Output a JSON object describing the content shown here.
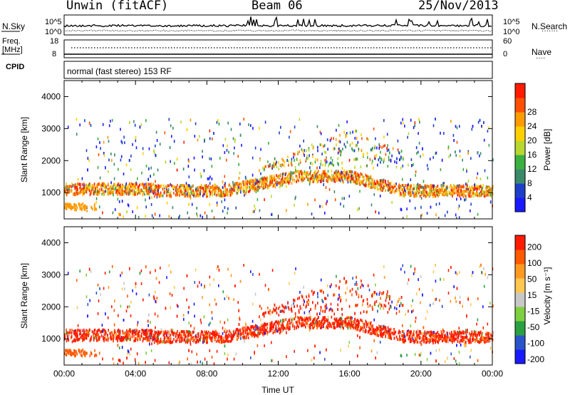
{
  "header": {
    "station": "Unwin (fitACF)",
    "beam": "Beam 06",
    "date": "25/Nov/2013"
  },
  "noise_panel": {
    "left_label": "N.Sky",
    "right_label": "N.Search",
    "right_label_line": "·······",
    "left_ticks": [
      "10^5",
      "10^0"
    ],
    "right_ticks": [
      "10^5",
      "10^0"
    ]
  },
  "freq_panel": {
    "left_label_line1": "Freq.",
    "left_label_line2": "[MHz]",
    "right_label": "Nave",
    "right_label_line": "····",
    "left_ticks": [
      "18",
      "8"
    ],
    "right_ticks": [
      "60",
      "0"
    ]
  },
  "cpid": {
    "label": "CPID",
    "text": "normal (fast stereo) 153 RF"
  },
  "chart_data": [
    {
      "type": "heatmap",
      "name": "power",
      "ylabel": "Slant Range [km]",
      "ylim": [
        180,
        4500
      ],
      "yticks": [
        1000,
        2000,
        3000,
        4000
      ],
      "xlim_hours": [
        0,
        24
      ],
      "xticks": [
        "00:00",
        "04:00",
        "08:00",
        "12:00",
        "16:00",
        "20:00",
        "00:00"
      ],
      "colorbar": {
        "label": "Power [dB]",
        "ticks": [
          "4",
          "8",
          "12",
          "16",
          "20",
          "24",
          "28"
        ],
        "colors": [
          "#1a1aff",
          "#1e40c8",
          "#3a8a6a",
          "#3cb040",
          "#b8d830",
          "#ffd000",
          "#ff9a00",
          "#ff5000",
          "#ff1a00"
        ]
      }
    },
    {
      "type": "heatmap",
      "name": "velocity",
      "ylabel": "Slant Range [km]",
      "ylim": [
        180,
        4500
      ],
      "yticks": [
        1000,
        2000,
        3000,
        4000
      ],
      "xlim_hours": [
        0,
        24
      ],
      "xticks": [
        "00:00",
        "04:00",
        "08:00",
        "12:00",
        "16:00",
        "20:00",
        "00:00"
      ],
      "xlabel": "Time UT",
      "colorbar": {
        "label": "Velocity [m s⁻¹]",
        "ticks": [
          "200",
          "100",
          "50",
          "15",
          "-15",
          "-50",
          "-100",
          "-200"
        ],
        "colors": [
          "#1a1aff",
          "#2a55c8",
          "#2aa040",
          "#7fd040",
          "#c8c8c8",
          "#ffc850",
          "#ff9a20",
          "#ff5a00",
          "#ff1a00"
        ]
      }
    }
  ]
}
